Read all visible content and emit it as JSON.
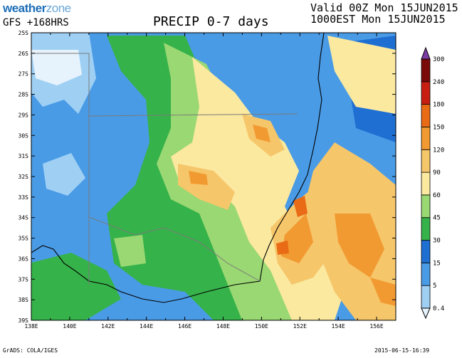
{
  "header": {
    "logo_part1": "weather",
    "logo_part2": "zone",
    "model": "GFS +168HRS",
    "title": "PRECIP 0-7 days",
    "valid_line1": "Valid 00Z Mon 15JUN2015",
    "valid_line2": "1000EST Mon 15JUN2015"
  },
  "map": {
    "lat_labels": [
      "25S",
      "26S",
      "27S",
      "28S",
      "29S",
      "30S",
      "31S",
      "32S",
      "33S",
      "34S",
      "35S",
      "36S",
      "37S",
      "38S",
      "39S"
    ],
    "lon_labels": [
      "138E",
      "140E",
      "142E",
      "144E",
      "146E",
      "148E",
      "150E",
      "152E",
      "154E",
      "156E"
    ],
    "land_color": "#f5e6a8",
    "ocean_color": "#4a90d9"
  },
  "legend": {
    "levels": [
      "0.4",
      "5",
      "15",
      "30",
      "45",
      "60",
      "90",
      "120",
      "150",
      "180",
      "240",
      "300"
    ],
    "colors": [
      "#e6f2fc",
      "#9fd0f4",
      "#4a9be6",
      "#1f6fd2",
      "#36b24a",
      "#9ad873",
      "#fbe9a0",
      "#f6c66a",
      "#f29a32",
      "#ea6b16",
      "#c81e12",
      "#7a0a0a"
    ],
    "top_color": "#7b3da1"
  },
  "footer": {
    "credit": "GrADS: COLA/IGES",
    "timestamp": "2015-06-15-16:39"
  }
}
